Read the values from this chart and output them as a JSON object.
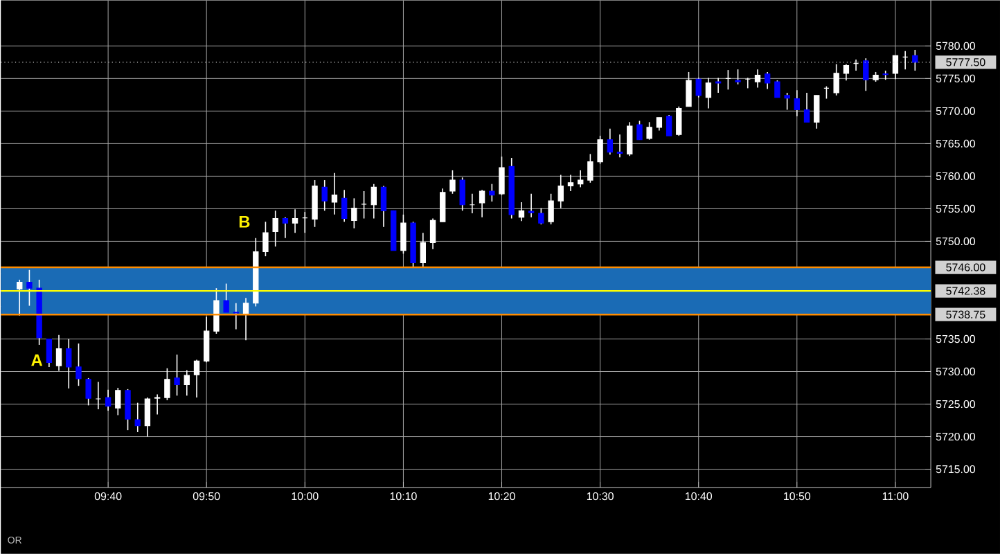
{
  "chart_data": {
    "type": "candlestick",
    "x": [
      9.5167,
      9.5333,
      9.55,
      9.5667,
      9.5833,
      9.6,
      9.6167,
      9.6333,
      9.65,
      9.6667,
      9.6833,
      9.7,
      9.7167,
      9.7333,
      9.75,
      9.7667,
      9.7833,
      9.8,
      9.8167,
      9.8333,
      9.85,
      9.8667,
      9.8833,
      9.9,
      9.9167,
      9.9333,
      9.95,
      9.9667,
      9.9833,
      10,
      10.0167,
      10.0333,
      10.05,
      10.0667,
      10.0833,
      10.1,
      10.1167,
      10.1333,
      10.15,
      10.1667,
      10.1833,
      10.2,
      10.2167,
      10.2333,
      10.25,
      10.2667,
      10.2833,
      10.3,
      10.3167,
      10.3333,
      10.35,
      10.3667,
      10.3833,
      10.4,
      10.4167,
      10.4333,
      10.45,
      10.4667,
      10.4833,
      10.5,
      10.5167,
      10.5333,
      10.55,
      10.5667,
      10.5833,
      10.6,
      10.6167,
      10.6333,
      10.65,
      10.6667,
      10.6833,
      10.7,
      10.7167,
      10.7333,
      10.75,
      10.7667,
      10.7833,
      10.8,
      10.8167,
      10.8333,
      10.85,
      10.8667,
      10.8833,
      10.9,
      10.9167,
      10.9333,
      10.95,
      10.9667,
      10.9833,
      11,
      11.0167,
      11.0333
    ],
    "ohlc": [
      [
        5742.7,
        5744.1,
        5738.6,
        5743.7
      ],
      [
        5743.7,
        5745.6,
        5740.1,
        5742.8
      ],
      [
        5742.8,
        5744.1,
        5734.1,
        5735.2
      ],
      [
        5735.0,
        5735.0,
        5730.7,
        5731.4
      ],
      [
        5730.9,
        5735.6,
        5730.1,
        5733.5
      ],
      [
        5733.5,
        5735.0,
        5727.4,
        5730.7
      ],
      [
        5730.7,
        5734.3,
        5727.8,
        5728.9
      ],
      [
        5728.8,
        5729.0,
        5724.8,
        5725.9
      ],
      [
        5725.8,
        5728.4,
        5724.2,
        5725.8
      ],
      [
        5726.0,
        5727.2,
        5724.0,
        5724.7
      ],
      [
        5724.4,
        5727.5,
        5723.3,
        5727.1
      ],
      [
        5727.1,
        5727.3,
        5721.0,
        5722.7
      ],
      [
        5722.6,
        5725.2,
        5720.7,
        5721.7
      ],
      [
        5721.7,
        5726.0,
        5720.0,
        5725.8
      ],
      [
        5725.9,
        5726.5,
        5723.4,
        5726.0
      ],
      [
        5726.0,
        5730.5,
        5725.6,
        5728.8
      ],
      [
        5729.0,
        5732.6,
        5726.3,
        5728.0
      ],
      [
        5728.0,
        5730.2,
        5726.3,
        5729.4
      ],
      [
        5729.5,
        5731.8,
        5726.0,
        5731.6
      ],
      [
        5731.6,
        5738.4,
        5731.4,
        5736.2
      ],
      [
        5736.2,
        5742.8,
        5735.8,
        5740.9
      ],
      [
        5740.9,
        5743.5,
        5739.1,
        5739.1
      ],
      [
        5739.1,
        5740.5,
        5736.5,
        5739.0
      ],
      [
        5738.9,
        5741.3,
        5734.8,
        5740.5
      ],
      [
        5740.5,
        5750.5,
        5740.0,
        5748.4
      ],
      [
        5748.4,
        5753.0,
        5747.7,
        5751.3
      ],
      [
        5751.5,
        5754.7,
        5749.2,
        5753.5
      ],
      [
        5753.5,
        5753.7,
        5750.5,
        5752.8
      ],
      [
        5752.8,
        5754.9,
        5751.3,
        5753.5
      ],
      [
        5753.6,
        5754.5,
        5751.3,
        5753.6
      ],
      [
        5753.4,
        5759.4,
        5752.2,
        5758.5
      ],
      [
        5758.3,
        5759.4,
        5754.7,
        5756.2
      ],
      [
        5756.0,
        5760.5,
        5754.1,
        5757.1
      ],
      [
        5756.6,
        5757.9,
        5753.0,
        5753.5
      ],
      [
        5753.2,
        5756.6,
        5752.0,
        5755.1
      ],
      [
        5755.7,
        5757.7,
        5753.5,
        5755.7
      ],
      [
        5755.6,
        5758.8,
        5753.5,
        5758.3
      ],
      [
        5758.3,
        5758.5,
        5752.2,
        5754.7
      ],
      [
        5754.7,
        5754.7,
        5748.6,
        5748.6
      ],
      [
        5748.6,
        5754.1,
        5748.1,
        5752.8
      ],
      [
        5752.8,
        5753.0,
        5746.0,
        5746.7
      ],
      [
        5746.7,
        5751.3,
        5746.0,
        5749.8
      ],
      [
        5749.8,
        5753.5,
        5748.8,
        5753.2
      ],
      [
        5753.0,
        5758.1,
        5753.0,
        5757.5
      ],
      [
        5757.7,
        5760.9,
        5757.3,
        5759.4
      ],
      [
        5759.4,
        5759.8,
        5754.7,
        5755.6
      ],
      [
        5755.6,
        5757.3,
        5754.3,
        5755.6
      ],
      [
        5755.9,
        5757.9,
        5753.7,
        5757.7
      ],
      [
        5757.7,
        5758.8,
        5756.1,
        5757.1
      ],
      [
        5757.3,
        5763.0,
        5757.1,
        5761.3
      ],
      [
        5761.5,
        5762.8,
        5753.5,
        5754.1
      ],
      [
        5753.7,
        5756.0,
        5753.1,
        5754.7
      ],
      [
        5754.6,
        5757.3,
        5753.7,
        5754.4
      ],
      [
        5754.3,
        5755.1,
        5752.6,
        5752.8
      ],
      [
        5753.0,
        5757.3,
        5752.6,
        5756.2
      ],
      [
        5756.2,
        5760.2,
        5755.1,
        5758.5
      ],
      [
        5758.5,
        5760.2,
        5757.7,
        5759.0
      ],
      [
        5758.8,
        5760.9,
        5758.3,
        5759.4
      ],
      [
        5759.4,
        5763.4,
        5759.0,
        5762.2
      ],
      [
        5762.2,
        5766.2,
        5761.9,
        5765.6
      ],
      [
        5765.6,
        5767.3,
        5763.3,
        5763.7
      ],
      [
        5763.7,
        5766.4,
        5762.9,
        5763.5
      ],
      [
        5763.4,
        5768.3,
        5763.1,
        5767.7
      ],
      [
        5767.9,
        5768.5,
        5765.6,
        5765.6
      ],
      [
        5765.8,
        5768.3,
        5765.6,
        5767.5
      ],
      [
        5767.5,
        5769.0,
        5767.0,
        5769.0
      ],
      [
        5769.2,
        5769.4,
        5766.2,
        5766.2
      ],
      [
        5766.4,
        5770.7,
        5766.2,
        5770.4
      ],
      [
        5770.7,
        5776.0,
        5770.7,
        5774.7
      ],
      [
        5774.9,
        5775.1,
        5772.1,
        5772.4
      ],
      [
        5772.1,
        5775.1,
        5770.4,
        5774.3
      ],
      [
        5774.5,
        5775.1,
        5772.8,
        5774.3
      ],
      [
        5775.0,
        5776.3,
        5773.3,
        5775.0
      ],
      [
        5774.7,
        5776.4,
        5774.1,
        5774.5
      ],
      [
        5774.9,
        5775.1,
        5773.5,
        5774.9
      ],
      [
        5774.5,
        5776.4,
        5773.6,
        5775.5
      ],
      [
        5775.7,
        5776.0,
        5773.4,
        5774.3
      ],
      [
        5774.5,
        5774.7,
        5772.1,
        5772.1
      ],
      [
        5772.4,
        5772.8,
        5770.2,
        5772.0
      ],
      [
        5771.9,
        5773.2,
        5769.2,
        5770.2
      ],
      [
        5770.2,
        5772.8,
        5768.3,
        5768.3
      ],
      [
        5768.3,
        5772.4,
        5767.3,
        5772.4
      ],
      [
        5773.5,
        5773.8,
        5771.9,
        5773.5
      ],
      [
        5772.8,
        5777.2,
        5772.4,
        5775.8
      ],
      [
        5775.8,
        5777.2,
        5774.7,
        5777.0
      ],
      [
        5777.3,
        5777.9,
        5776.2,
        5777.3
      ],
      [
        5777.7,
        5778.1,
        5773.1,
        5774.8
      ],
      [
        5774.8,
        5776.0,
        5774.5,
        5775.5
      ],
      [
        5775.7,
        5776.2,
        5774.8,
        5775.6
      ],
      [
        5775.8,
        5778.5,
        5774.9,
        5778.5
      ],
      [
        5778.3,
        5779.2,
        5776.4,
        5778.3
      ],
      [
        5778.5,
        5779.4,
        5776.2,
        5777.5
      ]
    ],
    "xlim": [
      9.485,
      11.06
    ],
    "xticks": [
      {
        "value": 9.6667,
        "label": "09:40"
      },
      {
        "value": 9.8333,
        "label": "09:50"
      },
      {
        "value": 10,
        "label": "10:00"
      },
      {
        "value": 10.1667,
        "label": "10:10"
      },
      {
        "value": 10.3333,
        "label": "10:20"
      },
      {
        "value": 10.5,
        "label": "10:30"
      },
      {
        "value": 10.6667,
        "label": "10:40"
      },
      {
        "value": 10.8333,
        "label": "10:50"
      },
      {
        "value": 11,
        "label": "11:00"
      }
    ],
    "ylim": [
      5712.2,
      5787
    ],
    "yticks": [
      {
        "value": 5715,
        "label": "5715.00"
      },
      {
        "value": 5720,
        "label": "5720.00"
      },
      {
        "value": 5725,
        "label": "5725.00"
      },
      {
        "value": 5730,
        "label": "5730.00"
      },
      {
        "value": 5735,
        "label": "5735.00"
      },
      {
        "value": 5740,
        "label": null
      },
      {
        "value": 5745,
        "label": null
      },
      {
        "value": 5750,
        "label": "5750.00"
      },
      {
        "value": 5755,
        "label": "5755.00"
      },
      {
        "value": 5760,
        "label": "5760.00"
      },
      {
        "value": 5765,
        "label": "5765.00"
      },
      {
        "value": 5770,
        "label": "5770.00"
      },
      {
        "value": 5775,
        "label": "5775.00"
      },
      {
        "value": 5780,
        "label": "5780.00"
      }
    ],
    "grid": true,
    "bands": [
      {
        "axis": "y",
        "from": 5738.75,
        "to": 5746,
        "color": "#1a6bb5"
      }
    ],
    "ref_lines": [
      {
        "axis": "y",
        "value": 5746,
        "label": "5746.00",
        "color": "#ff8c00"
      },
      {
        "axis": "y",
        "value": 5742.38,
        "label": "5742.38",
        "color": "#ffff00"
      },
      {
        "axis": "y",
        "value": 5738.75,
        "label": "5738.75",
        "color": "#ff8c00"
      },
      {
        "axis": "y",
        "value": 5777.5,
        "label": "5777.50",
        "color": "#d3d3d3",
        "line_style": "dotted"
      }
    ],
    "annotations": [
      "A",
      "B",
      "OR"
    ]
  }
}
